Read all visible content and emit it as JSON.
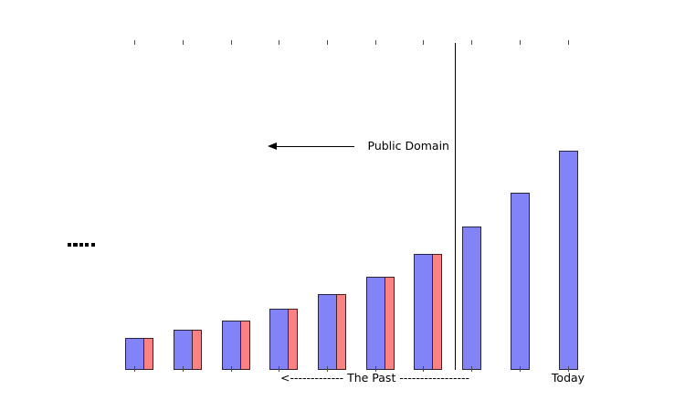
{
  "window": {
    "background": "#ffffff"
  },
  "labels": {
    "public_domain": "Public Domain",
    "the_past": "<------------- The Past -----------------",
    "today": "Today",
    "continuation_dots": "....."
  },
  "chart_data": {
    "type": "bar",
    "title": "",
    "xlabel": "",
    "ylabel": "",
    "x_positions": [
      1,
      2,
      3,
      4,
      5,
      6,
      7,
      8,
      9,
      10
    ],
    "x_tick_labels": [
      "",
      "",
      "",
      "",
      "",
      "",
      "",
      "",
      "",
      ""
    ],
    "series": [
      {
        "name": "blue-bars",
        "color": "#8383f8",
        "edge_color": "#26263e",
        "values": [
          35,
          44,
          54,
          67,
          83,
          102,
          127,
          157,
          194,
          240
        ]
      },
      {
        "name": "red-bars",
        "color": "#fa8282",
        "edge_color": "#46201f",
        "values": [
          35,
          44,
          54,
          67,
          83,
          102,
          127,
          null,
          null,
          null
        ]
      }
    ],
    "value_scale": "arbitrary units; no value axis shown; each bar is about 1.235x the previous",
    "grid": "off",
    "legend": "none",
    "ticks": {
      "top": true,
      "bottom": true,
      "count": 10
    },
    "divider_after_position": 7,
    "annotations": [
      {
        "name": "public-domain-arrow",
        "text": "Public Domain",
        "type": "left-pointing-arrow"
      },
      {
        "name": "past-axis-label",
        "text": "<------------- The Past -----------------"
      },
      {
        "name": "today-axis-label",
        "text": "Today"
      },
      {
        "name": "continuation-dots",
        "text": "....."
      }
    ]
  }
}
